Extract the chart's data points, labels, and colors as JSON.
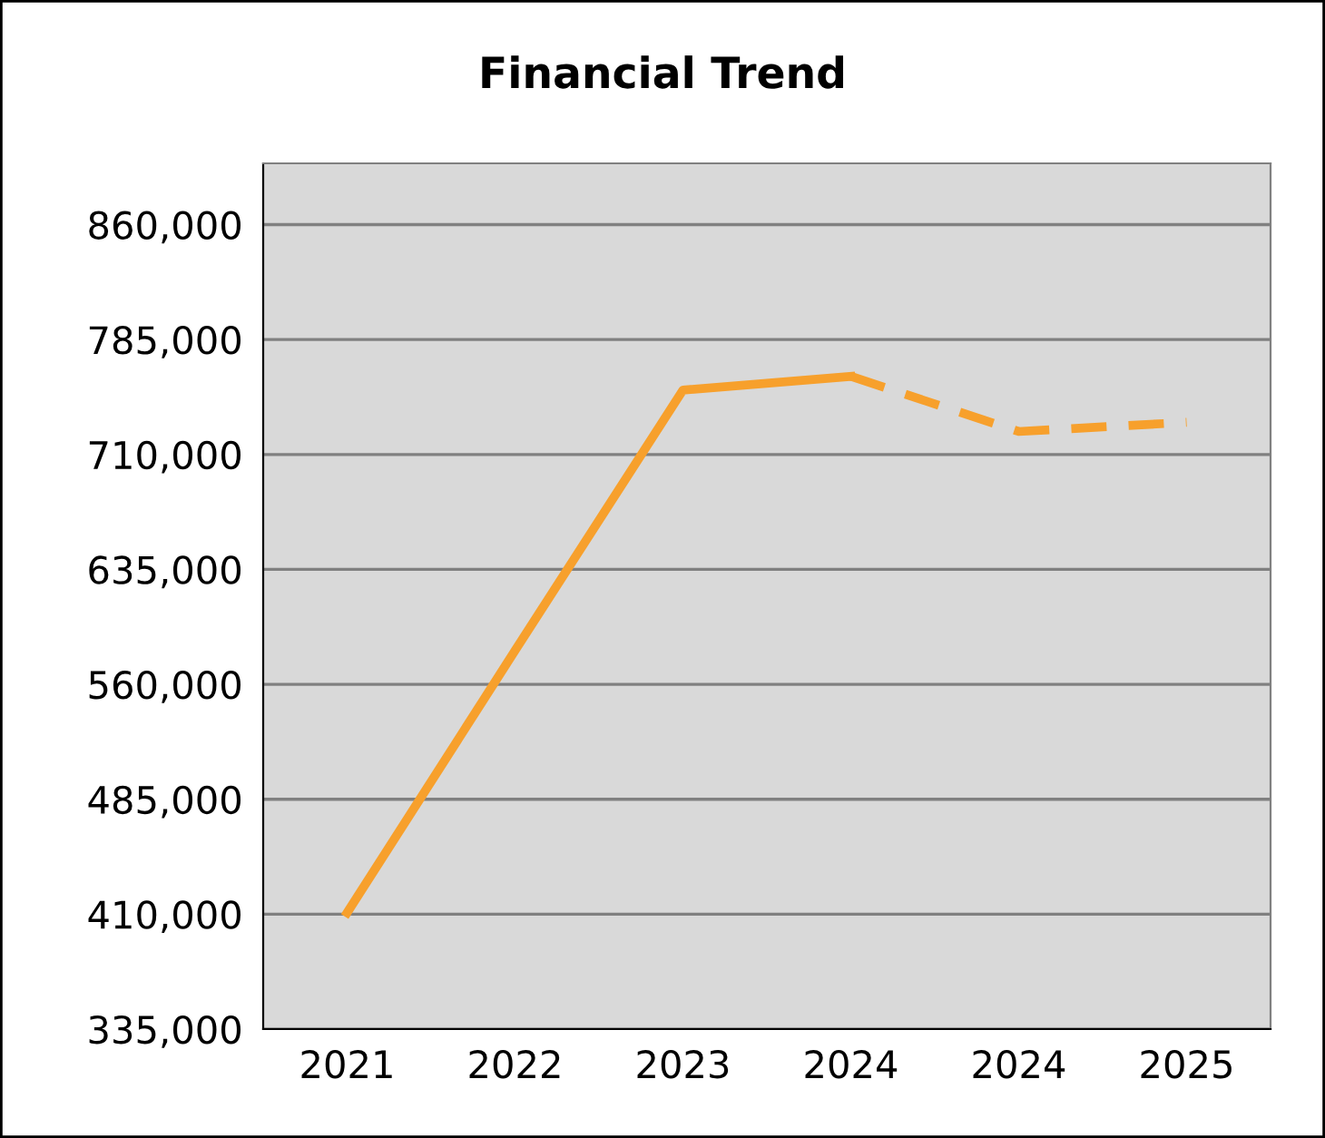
{
  "chart_data": {
    "type": "line",
    "title": "Financial Trend",
    "categories": [
      "2021",
      "2022",
      "2023",
      "2024",
      "2024",
      "2025"
    ],
    "series": [
      {
        "color": "#f7a02c",
        "values": [
          411000,
          582000,
          752000,
          761000,
          null,
          null
        ],
        "line_style": "solid"
      },
      {
        "color": "#f7a02c",
        "values": [
          null,
          null,
          null,
          761000,
          725000,
          731000
        ],
        "line_style": "dashed"
      }
    ],
    "ylim": [
      335000,
      900000
    ],
    "yticks": [
      {
        "value": 335000,
        "label": "335,000"
      },
      {
        "value": 410000,
        "label": "410,000"
      },
      {
        "value": 485000,
        "label": "485,000"
      },
      {
        "value": 560000,
        "label": "560,000"
      },
      {
        "value": 635000,
        "label": "635,000"
      },
      {
        "value": 710000,
        "label": "710,000"
      },
      {
        "value": 785000,
        "label": "785,000"
      },
      {
        "value": 860000,
        "label": "860,000"
      }
    ],
    "grid": "y",
    "legend": false,
    "marker": "none"
  }
}
